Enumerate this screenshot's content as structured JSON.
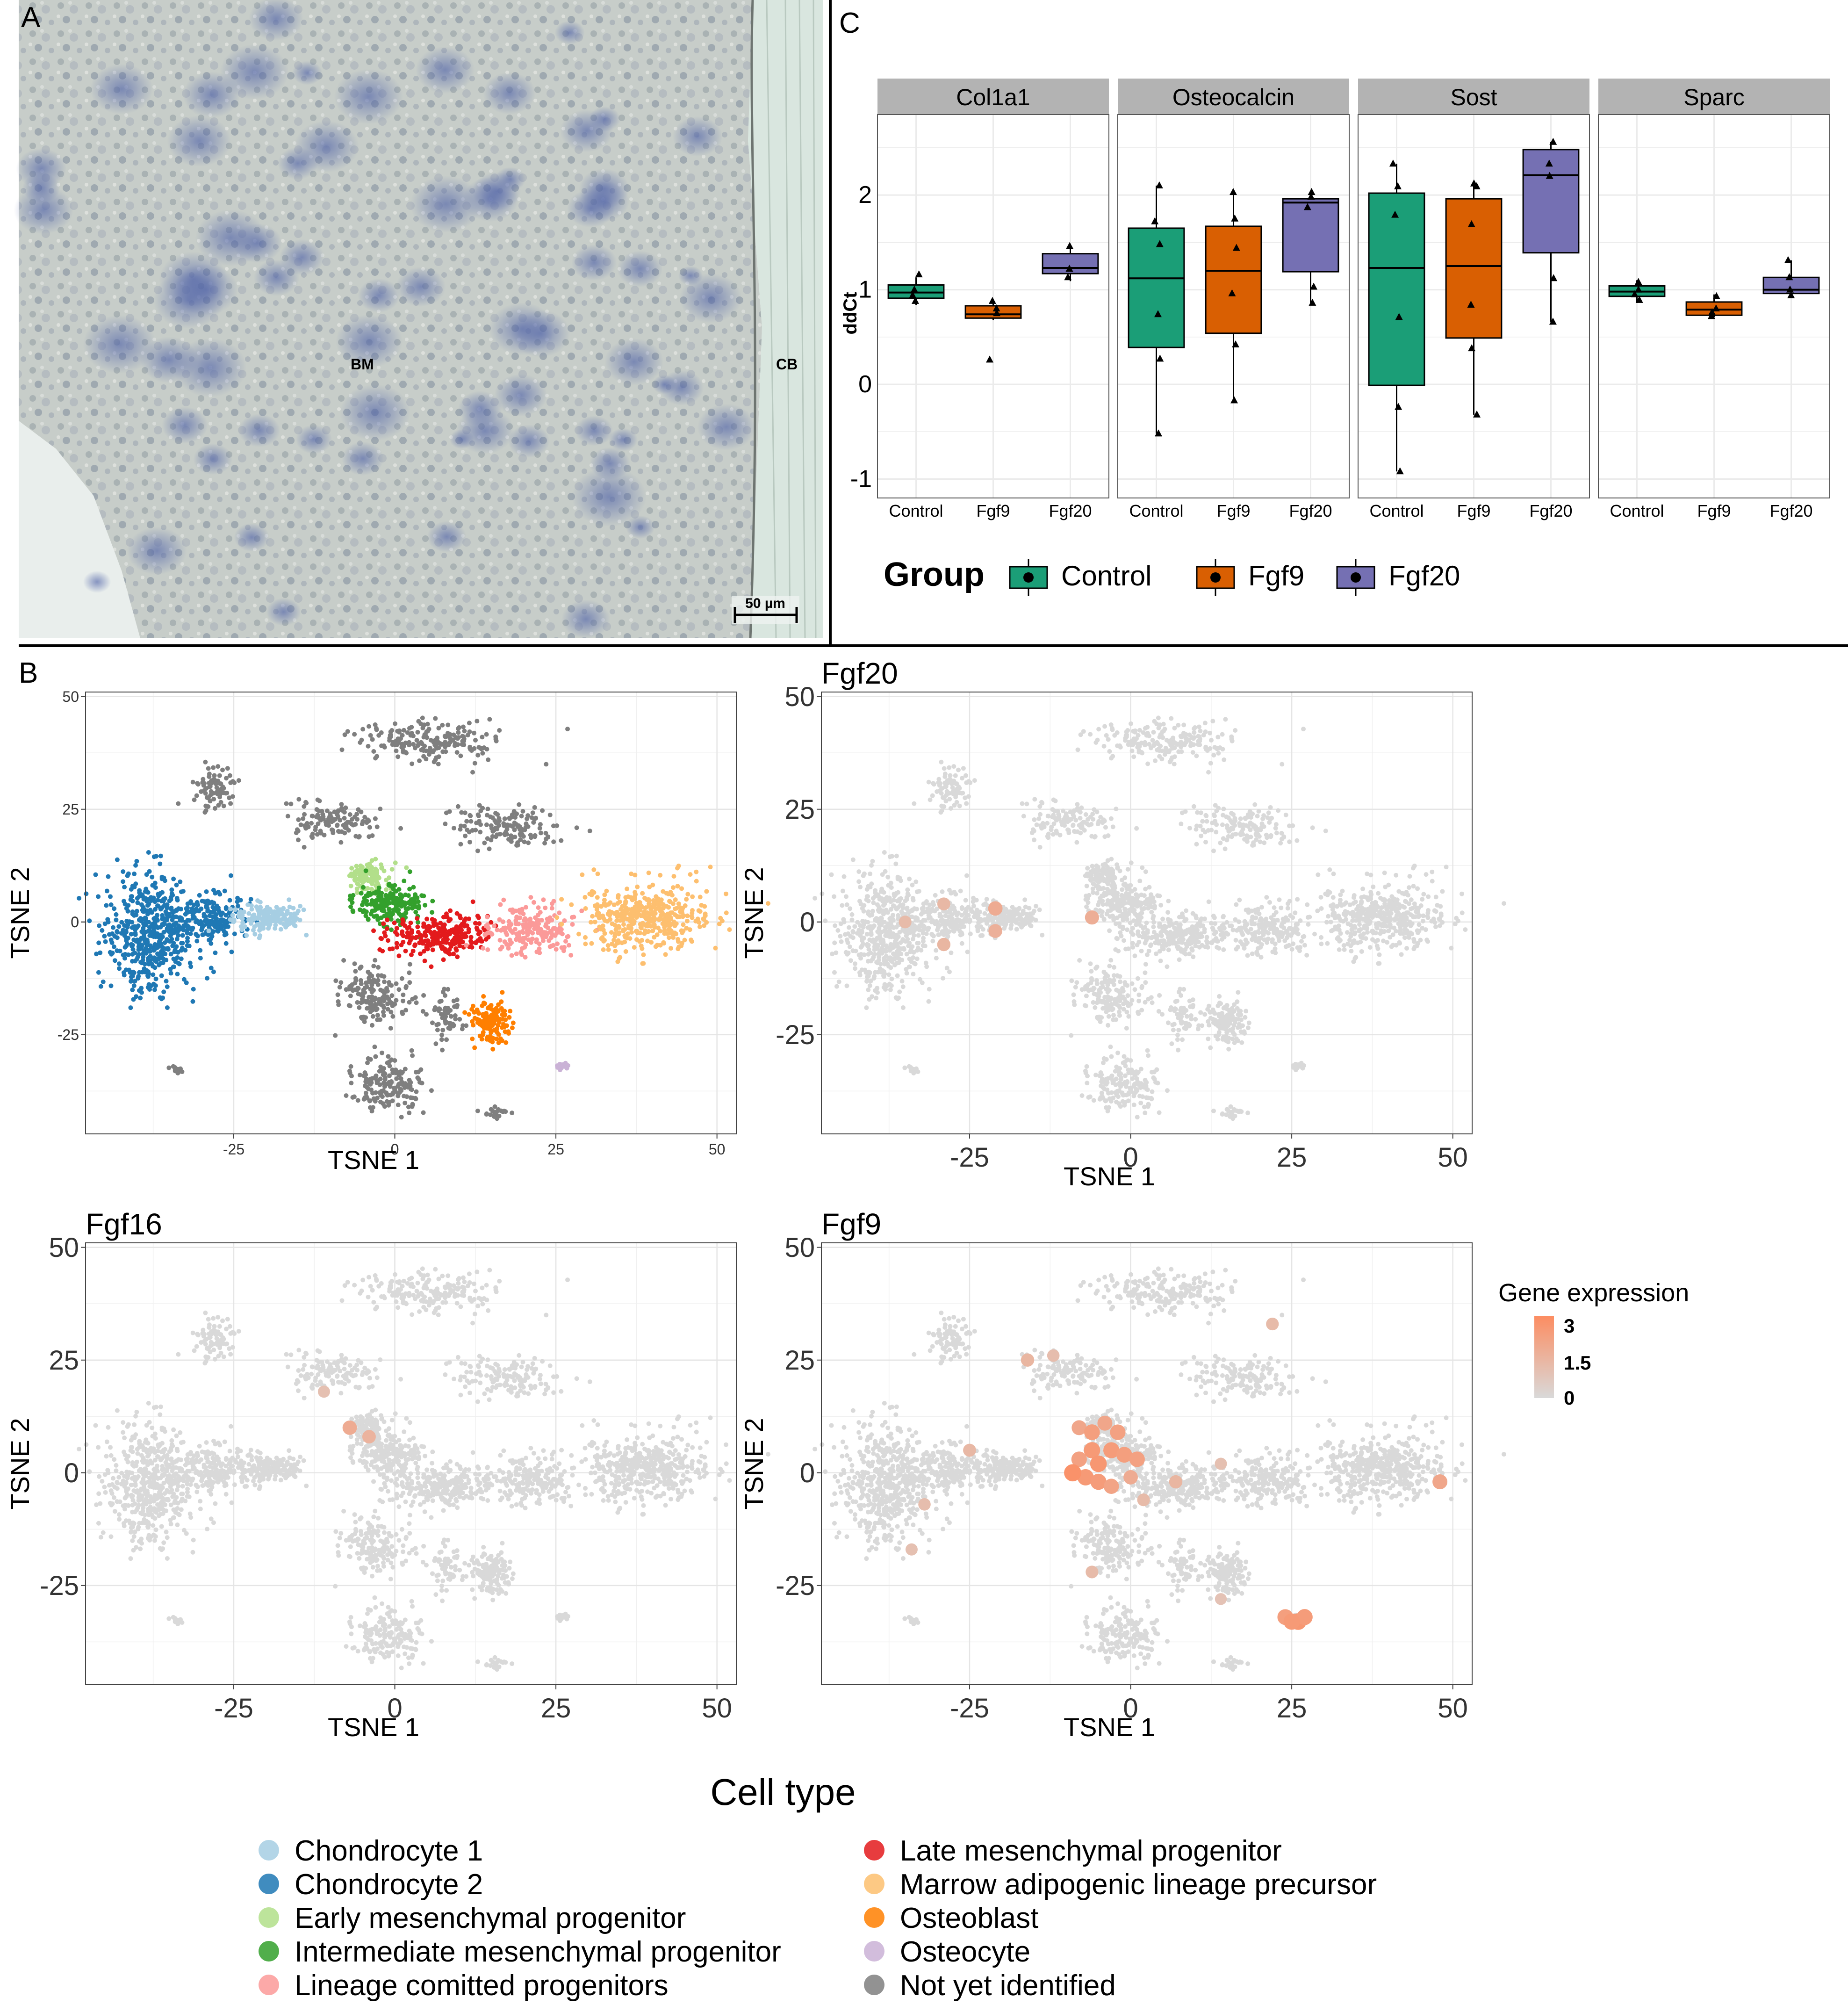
{
  "panels": {
    "a": {
      "letter": "A",
      "label_bm": "BM",
      "label_cb": "CB",
      "scale_bar": "50 µm"
    },
    "b": {
      "letter": "B"
    },
    "c": {
      "letter": "C"
    }
  },
  "colors": {
    "Control": "#1b9e77",
    "Fgf9": "#d95f02",
    "Fgf20": "#7570b3",
    "strip_bg": "#b3b3b3",
    "grid": "#ebebeb",
    "expr_low": "#d9d9d9",
    "expr_high": "#fc8d62"
  },
  "chart_data": [
    {
      "id": "C",
      "type": "box",
      "ylabel": "ddCt",
      "ylim": [
        -1.2,
        2.85
      ],
      "yticks": [
        -1,
        0,
        1,
        2
      ],
      "groups": [
        "Control",
        "Fgf9",
        "Fgf20"
      ],
      "legend": {
        "title": "Group",
        "entries": [
          "Control",
          "Fgf9",
          "Fgf20"
        ],
        "position": "bottom"
      },
      "facets": [
        {
          "name": "Col1a1",
          "boxes": [
            {
              "group": "Control",
              "q1": 0.91,
              "median": 0.97,
              "q3": 1.05,
              "lo": 0.84,
              "hi": 1.13,
              "points": [
                1.16,
                1.0,
                0.94,
                0.88
              ]
            },
            {
              "group": "Fgf9",
              "q1": 0.7,
              "median": 0.74,
              "q3": 0.83,
              "lo": 0.68,
              "hi": 0.89,
              "points": [
                0.88,
                0.8,
                0.75,
                0.26
              ]
            },
            {
              "group": "Fgf20",
              "q1": 1.17,
              "median": 1.23,
              "q3": 1.38,
              "lo": 1.09,
              "hi": 1.48,
              "points": [
                1.46,
                1.22,
                1.13
              ]
            }
          ]
        },
        {
          "name": "Osteocalcin",
          "boxes": [
            {
              "group": "Control",
              "q1": 0.39,
              "median": 1.12,
              "q3": 1.65,
              "lo": -0.52,
              "hi": 2.1,
              "points": [
                2.1,
                1.72,
                1.48,
                0.74,
                0.27,
                -0.52
              ]
            },
            {
              "group": "Fgf9",
              "q1": 0.54,
              "median": 1.2,
              "q3": 1.67,
              "lo": -0.17,
              "hi": 2.03,
              "points": [
                2.03,
                1.75,
                1.44,
                0.96,
                0.42,
                -0.17
              ]
            },
            {
              "group": "Fgf20",
              "q1": 1.19,
              "median": 1.92,
              "q3": 1.96,
              "lo": 0.86,
              "hi": 2.03,
              "points": [
                2.03,
                1.98,
                1.87,
                1.03,
                0.86
              ]
            }
          ]
        },
        {
          "name": "Sost",
          "boxes": [
            {
              "group": "Control",
              "q1": -0.01,
              "median": 1.23,
              "q3": 2.02,
              "lo": -0.92,
              "hi": 2.33,
              "points": [
                2.33,
                2.09,
                1.79,
                0.71,
                -0.24,
                -0.92
              ]
            },
            {
              "group": "Fgf9",
              "q1": 0.49,
              "median": 1.25,
              "q3": 1.96,
              "lo": -0.32,
              "hi": 2.12,
              "points": [
                2.12,
                2.09,
                1.69,
                0.84,
                0.38,
                -0.32
              ]
            },
            {
              "group": "Fgf20",
              "q1": 1.39,
              "median": 2.21,
              "q3": 2.48,
              "lo": 0.66,
              "hi": 2.56,
              "points": [
                2.56,
                2.33,
                2.2,
                1.12,
                0.66
              ]
            }
          ]
        },
        {
          "name": "Sparc",
          "boxes": [
            {
              "group": "Control",
              "q1": 0.93,
              "median": 0.98,
              "q3": 1.04,
              "lo": 0.86,
              "hi": 1.1,
              "points": [
                1.08,
                1.0,
                0.95,
                0.89
              ]
            },
            {
              "group": "Fgf9",
              "q1": 0.73,
              "median": 0.79,
              "q3": 0.87,
              "lo": 0.71,
              "hi": 0.95,
              "points": [
                0.93,
                0.8,
                0.76,
                0.72
              ]
            },
            {
              "group": "Fgf20",
              "q1": 0.96,
              "median": 1.0,
              "q3": 1.13,
              "lo": 0.94,
              "hi": 1.31,
              "points": [
                1.31,
                1.13,
                1.0,
                0.94
              ]
            }
          ]
        }
      ]
    },
    {
      "id": "B-celltype",
      "type": "scatter",
      "xlabel": "TSNE 1",
      "ylabel": "TSNE 2",
      "xlim": [
        -48,
        53
      ],
      "ylim": [
        -47,
        51
      ],
      "xticks": [
        -25,
        0,
        25,
        50
      ],
      "yticks": [
        -25,
        0,
        25,
        50
      ],
      "legend": {
        "title": "Cell type",
        "position": "bottom",
        "entries": [
          {
            "name": "Chondrocyte 1",
            "color": "#a6cee3"
          },
          {
            "name": "Chondrocyte 2",
            "color": "#1f78b4"
          },
          {
            "name": "Early mesenchymal progenitor",
            "color": "#b2df8a"
          },
          {
            "name": "Intermediate mesenchymal progenitor",
            "color": "#33a02c"
          },
          {
            "name": "Lineage comitted progenitors",
            "color": "#fb9a99"
          },
          {
            "name": "Late mesenchymal progenitor",
            "color": "#e31a1c"
          },
          {
            "name": "Marrow adipogenic lineage precursor",
            "color": "#fdbf6f"
          },
          {
            "name": "Osteoblast",
            "color": "#ff7f00"
          },
          {
            "name": "Osteocyte",
            "color": "#cab2d6"
          },
          {
            "name": "Not yet identified",
            "color": "#7f7f7f"
          }
        ]
      },
      "clusters": [
        {
          "type": "Chondrocyte 2",
          "cx": -38,
          "cy": -3,
          "rx": 6,
          "ry": 12,
          "n": 500
        },
        {
          "type": "Chondrocyte 2",
          "cx": -29,
          "cy": 1,
          "rx": 5,
          "ry": 5,
          "n": 180
        },
        {
          "type": "Chondrocyte 1",
          "cx": -20,
          "cy": 1,
          "rx": 5,
          "ry": 3,
          "n": 160
        },
        {
          "type": "Early mesenchymal progenitor",
          "cx": -4,
          "cy": 10,
          "rx": 3,
          "ry": 3,
          "n": 110
        },
        {
          "type": "Intermediate mesenchymal progenitor",
          "cx": -1,
          "cy": 4,
          "rx": 5,
          "ry": 4,
          "n": 200
        },
        {
          "type": "Late mesenchymal progenitor",
          "cx": 7,
          "cy": -3,
          "rx": 7,
          "ry": 4,
          "n": 260
        },
        {
          "type": "Lineage comitted progenitors",
          "cx": 21,
          "cy": -2,
          "rx": 6,
          "ry": 5,
          "n": 200
        },
        {
          "type": "Marrow adipogenic lineage precursor",
          "cx": 39,
          "cy": 1,
          "rx": 9,
          "ry": 7,
          "n": 420
        },
        {
          "type": "Osteoblast",
          "cx": 15,
          "cy": -22,
          "rx": 3,
          "ry": 4,
          "n": 130
        },
        {
          "type": "Osteocyte",
          "cx": 26,
          "cy": -32,
          "rx": 1.2,
          "ry": 0.8,
          "n": 14
        },
        {
          "type": "Not yet identified",
          "cx": -28,
          "cy": 30,
          "rx": 3,
          "ry": 4,
          "n": 80
        },
        {
          "type": "Not yet identified",
          "cx": -10,
          "cy": 22,
          "rx": 6,
          "ry": 4,
          "n": 120
        },
        {
          "type": "Not yet identified",
          "cx": 6,
          "cy": 40,
          "rx": 10,
          "ry": 4,
          "n": 200
        },
        {
          "type": "Not yet identified",
          "cx": 18,
          "cy": 21,
          "rx": 8,
          "ry": 4,
          "n": 140
        },
        {
          "type": "Not yet identified",
          "cx": -3,
          "cy": -16,
          "rx": 5,
          "ry": 6,
          "n": 170
        },
        {
          "type": "Not yet identified",
          "cx": -1,
          "cy": -36,
          "rx": 5,
          "ry": 5,
          "n": 170
        },
        {
          "type": "Not yet identified",
          "cx": 8,
          "cy": -22,
          "rx": 2,
          "ry": 5,
          "n": 60
        },
        {
          "type": "Not yet identified",
          "cx": 16,
          "cy": -42,
          "rx": 2,
          "ry": 1,
          "n": 22
        },
        {
          "type": "Not yet identified",
          "cx": -34,
          "cy": -33,
          "rx": 1,
          "ry": 0.8,
          "n": 10
        }
      ]
    },
    {
      "id": "B-Fgf20",
      "type": "scatter",
      "title": "Fgf20",
      "xlabel": "TSNE 1",
      "ylabel": "TSNE 2",
      "xlim": [
        -48,
        53
      ],
      "ylim": [
        -47,
        51
      ],
      "xticks": [
        -25,
        0,
        25,
        50
      ],
      "yticks": [
        -25,
        0,
        25,
        50
      ],
      "expressing": [
        {
          "x": -35,
          "y": 0,
          "v": 1.2
        },
        {
          "x": -29,
          "y": 4,
          "v": 1.3
        },
        {
          "x": -29,
          "y": -5,
          "v": 1.4
        },
        {
          "x": -21,
          "y": 3,
          "v": 1.8
        },
        {
          "x": -21,
          "y": -2,
          "v": 1.6
        },
        {
          "x": -6,
          "y": 1,
          "v": 1.7
        }
      ]
    },
    {
      "id": "B-Fgf16",
      "type": "scatter",
      "title": "Fgf16",
      "xlabel": "TSNE 1",
      "ylabel": "TSNE 2",
      "xlim": [
        -48,
        53
      ],
      "ylim": [
        -47,
        51
      ],
      "xticks": [
        -25,
        0,
        25,
        50
      ],
      "yticks": [
        -25,
        0,
        25,
        50
      ],
      "expressing": [
        {
          "x": -11,
          "y": 18,
          "v": 1.0
        },
        {
          "x": -7,
          "y": 10,
          "v": 1.8
        },
        {
          "x": -4,
          "y": 8,
          "v": 1.5
        }
      ]
    },
    {
      "id": "B-Fgf9",
      "type": "scatter",
      "title": "Fgf9",
      "xlabel": "TSNE 1",
      "ylabel": "TSNE 2",
      "xlim": [
        -48,
        53
      ],
      "ylim": [
        -47,
        51
      ],
      "xticks": [
        -25,
        0,
        25,
        50
      ],
      "yticks": [
        -25,
        0,
        25,
        50
      ],
      "color_legend": {
        "title": "Gene expression",
        "ticks": [
          "3",
          "1.5",
          "0"
        ],
        "max": 3
      },
      "expressing": [
        {
          "x": -16,
          "y": 25,
          "v": 1.4
        },
        {
          "x": -12,
          "y": 26,
          "v": 1.1
        },
        {
          "x": 22,
          "y": 33,
          "v": 1.2
        },
        {
          "x": -8,
          "y": 10,
          "v": 2.0
        },
        {
          "x": -6,
          "y": 9,
          "v": 2.3
        },
        {
          "x": -4,
          "y": 11,
          "v": 2.0
        },
        {
          "x": -2,
          "y": 9,
          "v": 2.2
        },
        {
          "x": -6,
          "y": 5,
          "v": 2.5
        },
        {
          "x": -3,
          "y": 5,
          "v": 2.4
        },
        {
          "x": -1,
          "y": 4,
          "v": 2.3
        },
        {
          "x": -8,
          "y": 3,
          "v": 2.2
        },
        {
          "x": -5,
          "y": 2,
          "v": 2.6
        },
        {
          "x": -7,
          "y": -1,
          "v": 2.5
        },
        {
          "x": -9,
          "y": 0,
          "v": 2.8
        },
        {
          "x": -5,
          "y": -2,
          "v": 2.4
        },
        {
          "x": -3,
          "y": -3,
          "v": 2.1
        },
        {
          "x": 1,
          "y": 3,
          "v": 2.2
        },
        {
          "x": 0,
          "y": -1,
          "v": 1.8
        },
        {
          "x": 7,
          "y": -2,
          "v": 1.4
        },
        {
          "x": 2,
          "y": -6,
          "v": 1.2
        },
        {
          "x": -25,
          "y": 5,
          "v": 1.3
        },
        {
          "x": -32,
          "y": -7,
          "v": 1.1
        },
        {
          "x": -34,
          "y": -17,
          "v": 1.0
        },
        {
          "x": -6,
          "y": -22,
          "v": 1.2
        },
        {
          "x": 14,
          "y": -28,
          "v": 0.9
        },
        {
          "x": 24,
          "y": -32,
          "v": 2.3
        },
        {
          "x": 26,
          "y": -33,
          "v": 2.6
        },
        {
          "x": 27,
          "y": -32,
          "v": 2.4
        },
        {
          "x": 25,
          "y": -33,
          "v": 2.5
        },
        {
          "x": 48,
          "y": -2,
          "v": 2.0
        },
        {
          "x": 14,
          "y": 2,
          "v": 1.0
        }
      ]
    }
  ]
}
